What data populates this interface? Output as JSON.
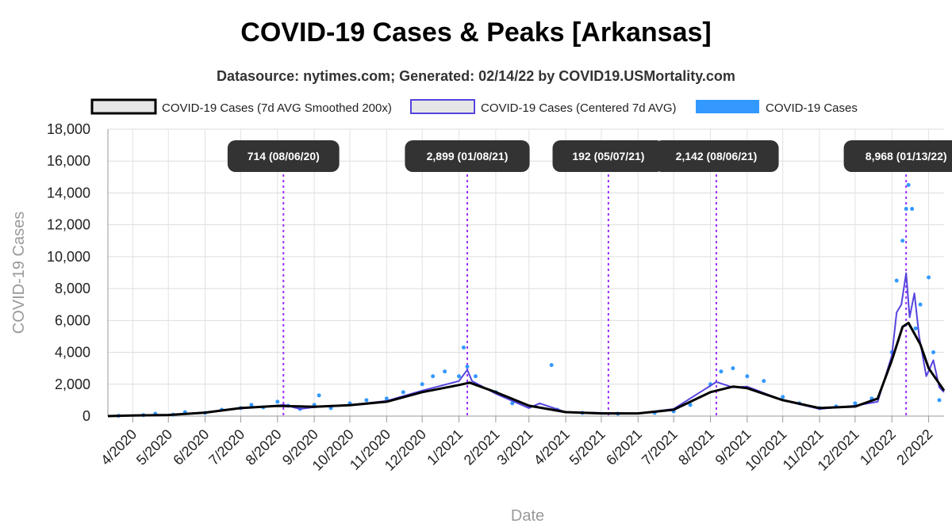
{
  "chart_data": {
    "type": "line",
    "title": "COVID-19 Cases & Peaks [Arkansas]",
    "subtitle": "Datasource: nytimes.com; Generated: 02/14/22 by COVID19.USMortality.com",
    "xlabel": "Date",
    "ylabel": "COVID-19 Cases",
    "ylim": [
      0,
      18000
    ],
    "yticks": [
      0,
      2000,
      4000,
      6000,
      8000,
      10000,
      12000,
      14000,
      16000,
      18000
    ],
    "ytick_labels": [
      "0",
      "2,000",
      "4,000",
      "6,000",
      "8,000",
      "10,000",
      "12,000",
      "14,000",
      "16,000",
      "18,000"
    ],
    "xlim": [
      "2020-03-11",
      "2022-02-14"
    ],
    "xticks": [
      "2020-04-01",
      "2020-05-01",
      "2020-06-01",
      "2020-07-01",
      "2020-08-01",
      "2020-09-01",
      "2020-10-01",
      "2020-11-01",
      "2020-12-01",
      "2021-01-01",
      "2021-02-01",
      "2021-03-01",
      "2021-04-01",
      "2021-05-01",
      "2021-06-01",
      "2021-07-01",
      "2021-08-01",
      "2021-09-01",
      "2021-10-01",
      "2021-11-01",
      "2021-12-01",
      "2022-01-01",
      "2022-02-01"
    ],
    "xtick_labels": [
      "4/2020",
      "5/2020",
      "6/2020",
      "7/2020",
      "8/2020",
      "9/2020",
      "10/2020",
      "11/2020",
      "12/2020",
      "1/2021",
      "2/2021",
      "3/2021",
      "4/2021",
      "5/2021",
      "6/2021",
      "7/2021",
      "8/2021",
      "9/2021",
      "10/2021",
      "11/2021",
      "12/2021",
      "1/2022",
      "2/2022"
    ],
    "grid": true,
    "legend_position": "top",
    "series": [
      {
        "name": "COVID-19 Cases (7d AVG Smoothed 200x)",
        "style": "line",
        "color": "#000000",
        "points": [
          [
            "2020-03-11",
            0
          ],
          [
            "2020-04-01",
            40
          ],
          [
            "2020-05-01",
            70
          ],
          [
            "2020-06-01",
            220
          ],
          [
            "2020-07-01",
            500
          ],
          [
            "2020-08-01",
            640
          ],
          [
            "2020-09-01",
            580
          ],
          [
            "2020-10-01",
            680
          ],
          [
            "2020-11-01",
            900
          ],
          [
            "2020-12-01",
            1500
          ],
          [
            "2021-01-01",
            1950
          ],
          [
            "2021-01-10",
            2100
          ],
          [
            "2021-02-01",
            1500
          ],
          [
            "2021-03-01",
            650
          ],
          [
            "2021-04-01",
            250
          ],
          [
            "2021-05-01",
            170
          ],
          [
            "2021-06-01",
            170
          ],
          [
            "2021-07-01",
            400
          ],
          [
            "2021-08-01",
            1500
          ],
          [
            "2021-08-20",
            1850
          ],
          [
            "2021-09-01",
            1750
          ],
          [
            "2021-10-01",
            1000
          ],
          [
            "2021-11-01",
            500
          ],
          [
            "2021-12-01",
            600
          ],
          [
            "2021-12-20",
            1100
          ],
          [
            "2022-01-01",
            3500
          ],
          [
            "2022-01-10",
            5600
          ],
          [
            "2022-01-15",
            5850
          ],
          [
            "2022-01-25",
            4500
          ],
          [
            "2022-02-01",
            3000
          ],
          [
            "2022-02-14",
            1600
          ]
        ]
      },
      {
        "name": "COVID-19 Cases (Centered 7d AVG)",
        "style": "line",
        "color": "#5544dd",
        "points": [
          [
            "2020-03-11",
            0
          ],
          [
            "2020-04-01",
            50
          ],
          [
            "2020-05-01",
            80
          ],
          [
            "2020-06-01",
            230
          ],
          [
            "2020-07-01",
            480
          ],
          [
            "2020-08-01",
            650
          ],
          [
            "2020-08-06",
            714
          ],
          [
            "2020-08-20",
            450
          ],
          [
            "2020-09-01",
            560
          ],
          [
            "2020-10-01",
            700
          ],
          [
            "2020-11-01",
            950
          ],
          [
            "2020-12-01",
            1600
          ],
          [
            "2021-01-01",
            2200
          ],
          [
            "2021-01-08",
            2899
          ],
          [
            "2021-01-12",
            2200
          ],
          [
            "2021-02-01",
            1400
          ],
          [
            "2021-03-01",
            500
          ],
          [
            "2021-03-10",
            800
          ],
          [
            "2021-04-01",
            250
          ],
          [
            "2021-05-07",
            192
          ],
          [
            "2021-06-01",
            170
          ],
          [
            "2021-07-01",
            450
          ],
          [
            "2021-08-06",
            2142
          ],
          [
            "2021-08-20",
            1800
          ],
          [
            "2021-09-01",
            1850
          ],
          [
            "2021-10-01",
            1000
          ],
          [
            "2021-11-01",
            450
          ],
          [
            "2021-12-01",
            650
          ],
          [
            "2021-12-20",
            900
          ],
          [
            "2022-01-01",
            3800
          ],
          [
            "2022-01-05",
            6500
          ],
          [
            "2022-01-09",
            7000
          ],
          [
            "2022-01-13",
            8968
          ],
          [
            "2022-01-16",
            6200
          ],
          [
            "2022-01-20",
            7700
          ],
          [
            "2022-01-24",
            5000
          ],
          [
            "2022-01-30",
            2500
          ],
          [
            "2022-02-05",
            3500
          ],
          [
            "2022-02-10",
            1800
          ],
          [
            "2022-02-14",
            1500
          ]
        ]
      },
      {
        "name": "COVID-19 Cases",
        "style": "scatter",
        "color": "#3399ff",
        "points": [
          [
            "2020-03-20",
            20
          ],
          [
            "2020-04-10",
            60
          ],
          [
            "2020-04-20",
            150
          ],
          [
            "2020-05-05",
            90
          ],
          [
            "2020-05-15",
            250
          ],
          [
            "2020-06-01",
            200
          ],
          [
            "2020-06-15",
            400
          ],
          [
            "2020-07-01",
            500
          ],
          [
            "2020-07-10",
            700
          ],
          [
            "2020-07-20",
            550
          ],
          [
            "2020-08-01",
            900
          ],
          [
            "2020-08-10",
            650
          ],
          [
            "2020-08-20",
            450
          ],
          [
            "2020-09-01",
            700
          ],
          [
            "2020-09-05",
            1300
          ],
          [
            "2020-09-15",
            500
          ],
          [
            "2020-10-01",
            800
          ],
          [
            "2020-10-15",
            1000
          ],
          [
            "2020-11-01",
            1100
          ],
          [
            "2020-11-15",
            1500
          ],
          [
            "2020-12-01",
            2000
          ],
          [
            "2020-12-10",
            2500
          ],
          [
            "2020-12-20",
            2800
          ],
          [
            "2021-01-01",
            2500
          ],
          [
            "2021-01-05",
            4300
          ],
          [
            "2021-01-08",
            3100
          ],
          [
            "2021-01-15",
            2500
          ],
          [
            "2021-02-01",
            1500
          ],
          [
            "2021-02-15",
            800
          ],
          [
            "2021-03-01",
            600
          ],
          [
            "2021-03-20",
            3200
          ],
          [
            "2021-03-25",
            400
          ],
          [
            "2021-04-15",
            200
          ],
          [
            "2021-05-15",
            150
          ],
          [
            "2021-06-15",
            200
          ],
          [
            "2021-07-01",
            300
          ],
          [
            "2021-07-15",
            700
          ],
          [
            "2021-08-01",
            2000
          ],
          [
            "2021-08-10",
            2800
          ],
          [
            "2021-08-20",
            3000
          ],
          [
            "2021-09-01",
            2500
          ],
          [
            "2021-09-15",
            2200
          ],
          [
            "2021-10-01",
            1200
          ],
          [
            "2021-10-15",
            800
          ],
          [
            "2021-11-01",
            500
          ],
          [
            "2021-11-15",
            600
          ],
          [
            "2021-12-01",
            800
          ],
          [
            "2021-12-15",
            1100
          ],
          [
            "2022-01-01",
            4000
          ],
          [
            "2022-01-05",
            8500
          ],
          [
            "2022-01-10",
            11000
          ],
          [
            "2022-01-13",
            13000
          ],
          [
            "2022-01-15",
            14500
          ],
          [
            "2022-01-18",
            13000
          ],
          [
            "2022-01-21",
            5500
          ],
          [
            "2022-01-25",
            7000
          ],
          [
            "2022-02-01",
            8700
          ],
          [
            "2022-02-05",
            4000
          ],
          [
            "2022-02-10",
            1000
          ]
        ]
      }
    ],
    "annotations": [
      {
        "date": "2020-08-06",
        "label": "714 (08/06/20)"
      },
      {
        "date": "2021-01-08",
        "label": "2,899 (01/08/21)"
      },
      {
        "date": "2021-05-07",
        "label": "192 (05/07/21)"
      },
      {
        "date": "2021-08-06",
        "label": "2,142 (08/06/21)"
      },
      {
        "date": "2022-01-13",
        "label": "8,968 (01/13/22)"
      }
    ]
  }
}
